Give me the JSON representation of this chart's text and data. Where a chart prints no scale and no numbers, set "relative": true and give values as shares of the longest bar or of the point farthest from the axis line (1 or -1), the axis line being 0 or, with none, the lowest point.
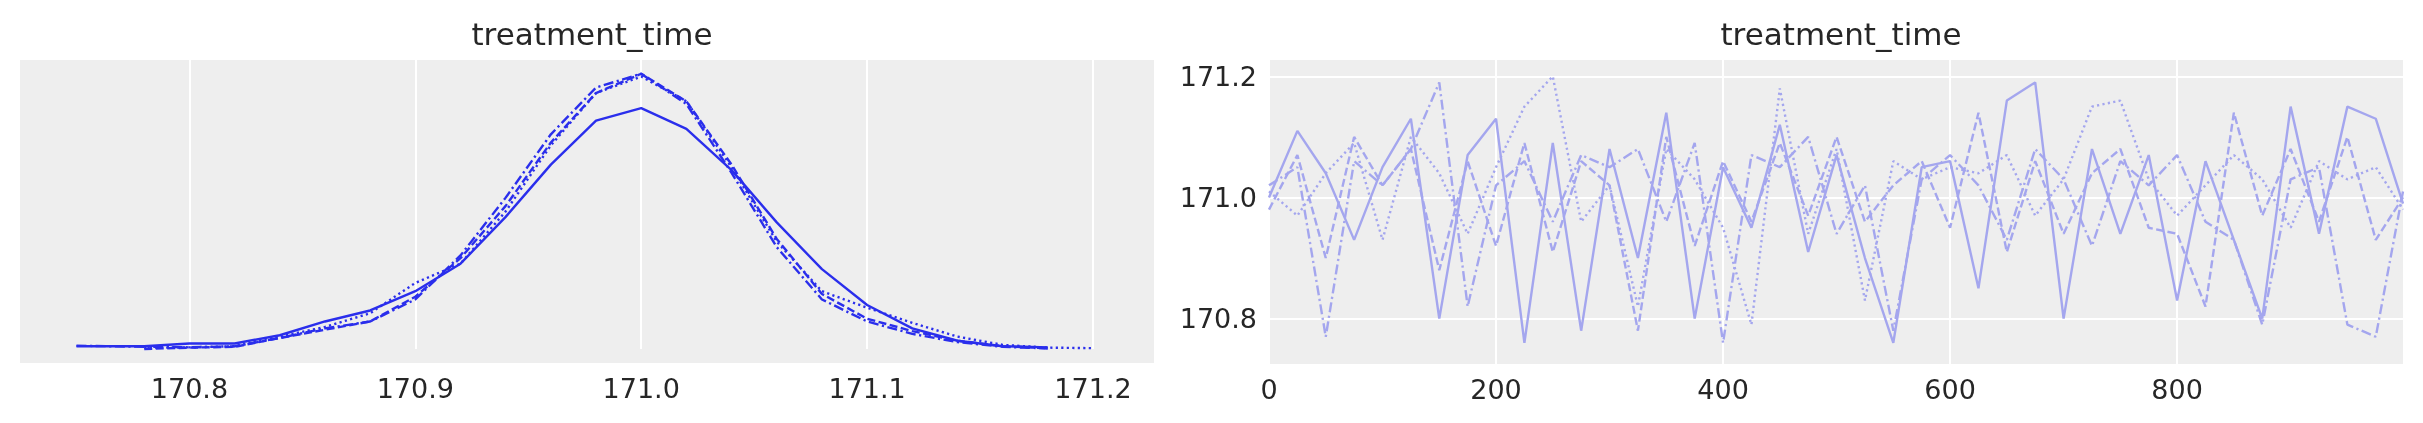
{
  "chart_data": [
    {
      "type": "line",
      "title": "treatment_time",
      "relative": true,
      "xlim": [
        170.725,
        171.227
      ],
      "xticks": [
        170.8,
        170.9,
        {
          "value": 171,
          "label": "171.0"
        },
        171.1,
        171.2
      ],
      "grid": "x",
      "x": [
        170.75,
        170.78,
        170.8,
        170.82,
        170.84,
        170.86,
        170.88,
        170.9,
        170.92,
        170.94,
        170.96,
        170.98,
        171,
        171.02,
        171.04,
        171.06,
        171.08,
        171.1,
        171.12,
        171.14,
        171.16,
        171.18,
        171.2
      ],
      "series": [
        {
          "color": "#2a2eec",
          "line_style": "solid",
          "values": [
            0.01,
            0.01,
            0.02,
            0.02,
            0.05,
            0.1,
            0.14,
            0.21,
            0.31,
            0.48,
            0.67,
            0.83,
            0.875,
            0.8,
            0.65,
            0.46,
            0.29,
            0.16,
            0.075,
            0.03,
            0.01,
            0.006,
            null
          ]
        },
        {
          "color": "#2a2eec",
          "line_style": "dashed",
          "values": [
            null,
            0,
            0.005,
            0.008,
            0.04,
            0.07,
            0.1,
            0.19,
            0.33,
            0.52,
            0.75,
            0.93,
            1,
            0.9,
            0.67,
            0.4,
            0.2,
            0.11,
            0.065,
            0.03,
            0.01,
            0.003,
            null
          ]
        },
        {
          "color": "#2a2eec",
          "line_style": "dashdot",
          "values": [
            0.012,
            0.008,
            0.006,
            0.01,
            0.04,
            0.075,
            0.1,
            0.18,
            0.34,
            0.55,
            0.78,
            0.95,
            1,
            0.89,
            0.64,
            0.37,
            0.18,
            0.1,
            0.055,
            0.025,
            0.008,
            0.002,
            null
          ]
        },
        {
          "color": "#2a2eec",
          "line_style": "dotted",
          "values": [
            null,
            0.004,
            0.006,
            0.01,
            0.045,
            0.08,
            0.13,
            0.24,
            0.31,
            0.5,
            0.74,
            0.93,
            0.99,
            0.9,
            0.66,
            0.39,
            0.21,
            0.15,
            0.095,
            0.045,
            0.015,
            0.005,
            0.003
          ]
        }
      ]
    },
    {
      "type": "line",
      "title": "treatment_time",
      "xlim": [
        0,
        999
      ],
      "ylim": [
        170.725,
        171.227
      ],
      "xticks": [
        0,
        200,
        400,
        600,
        800
      ],
      "yticks": [
        170.8,
        {
          "value": 171,
          "label": "171.0"
        },
        171.2
      ],
      "grid": true,
      "x": [
        0,
        25,
        50,
        75,
        100,
        125,
        150,
        175,
        200,
        225,
        250,
        275,
        300,
        325,
        350,
        375,
        400,
        425,
        450,
        475,
        500,
        525,
        550,
        575,
        600,
        625,
        650,
        675,
        700,
        725,
        750,
        775,
        800,
        825,
        850,
        875,
        900,
        925,
        950,
        975,
        999
      ],
      "series": [
        {
          "color": "#a4a6ee",
          "line_style": "solid",
          "values": [
            171,
            171.11,
            171.04,
            170.93,
            171.05,
            171.13,
            170.8,
            171.07,
            171.13,
            170.76,
            171.09,
            170.78,
            171.08,
            170.9,
            171.14,
            170.8,
            171.05,
            170.95,
            171.12,
            170.91,
            171.07,
            170.9,
            170.76,
            171.05,
            171.06,
            170.85,
            171.16,
            171.19,
            170.8,
            171.08,
            170.94,
            171.07,
            170.83,
            171.06,
            170.93,
            170.8,
            171.15,
            170.94,
            171.15,
            171.13,
            170.99
          ]
        },
        {
          "color": "#a4a6ee",
          "line_style": "dashed",
          "values": [
            170.98,
            171.07,
            170.9,
            171.1,
            171.02,
            171.08,
            170.88,
            171.06,
            170.92,
            171.09,
            170.91,
            171.06,
            171.02,
            170.78,
            171.1,
            170.92,
            171.06,
            170.96,
            171.09,
            170.97,
            171.1,
            170.96,
            171.02,
            171.06,
            170.95,
            171.14,
            170.91,
            171.06,
            170.94,
            171.04,
            171.08,
            170.95,
            170.94,
            170.82,
            171.14,
            170.97,
            171.08,
            170.96,
            171.1,
            170.93,
            171
          ]
        },
        {
          "color": "#a4a6ee",
          "line_style": "dashdot",
          "values": [
            171.02,
            171.05,
            170.77,
            171.06,
            171.02,
            171.08,
            171.19,
            170.82,
            171.02,
            171.06,
            170.96,
            171.07,
            171.05,
            171.08,
            170.96,
            171.09,
            170.76,
            171.07,
            171.05,
            171.1,
            170.94,
            171.02,
            170.78,
            171.03,
            171.07,
            171.02,
            170.93,
            171.08,
            171.03,
            170.92,
            171.06,
            171.02,
            171.07,
            170.96,
            170.93,
            170.79,
            171.03,
            171.05,
            170.79,
            170.77,
            171.01
          ]
        },
        {
          "color": "#a4a6ee",
          "line_style": "dotted",
          "values": [
            171.01,
            170.97,
            171.04,
            171.09,
            170.93,
            171.1,
            171.04,
            170.94,
            171.05,
            171.15,
            171.2,
            170.96,
            171.02,
            170.82,
            171.08,
            171.03,
            170.95,
            170.79,
            171.18,
            170.94,
            171.08,
            170.83,
            171.06,
            171.03,
            171.05,
            171.04,
            171.07,
            170.97,
            171.03,
            171.15,
            171.16,
            171.03,
            170.97,
            171.02,
            171.07,
            171.03,
            170.95,
            171.06,
            171.03,
            171.05,
            170.98
          ]
        }
      ]
    }
  ]
}
